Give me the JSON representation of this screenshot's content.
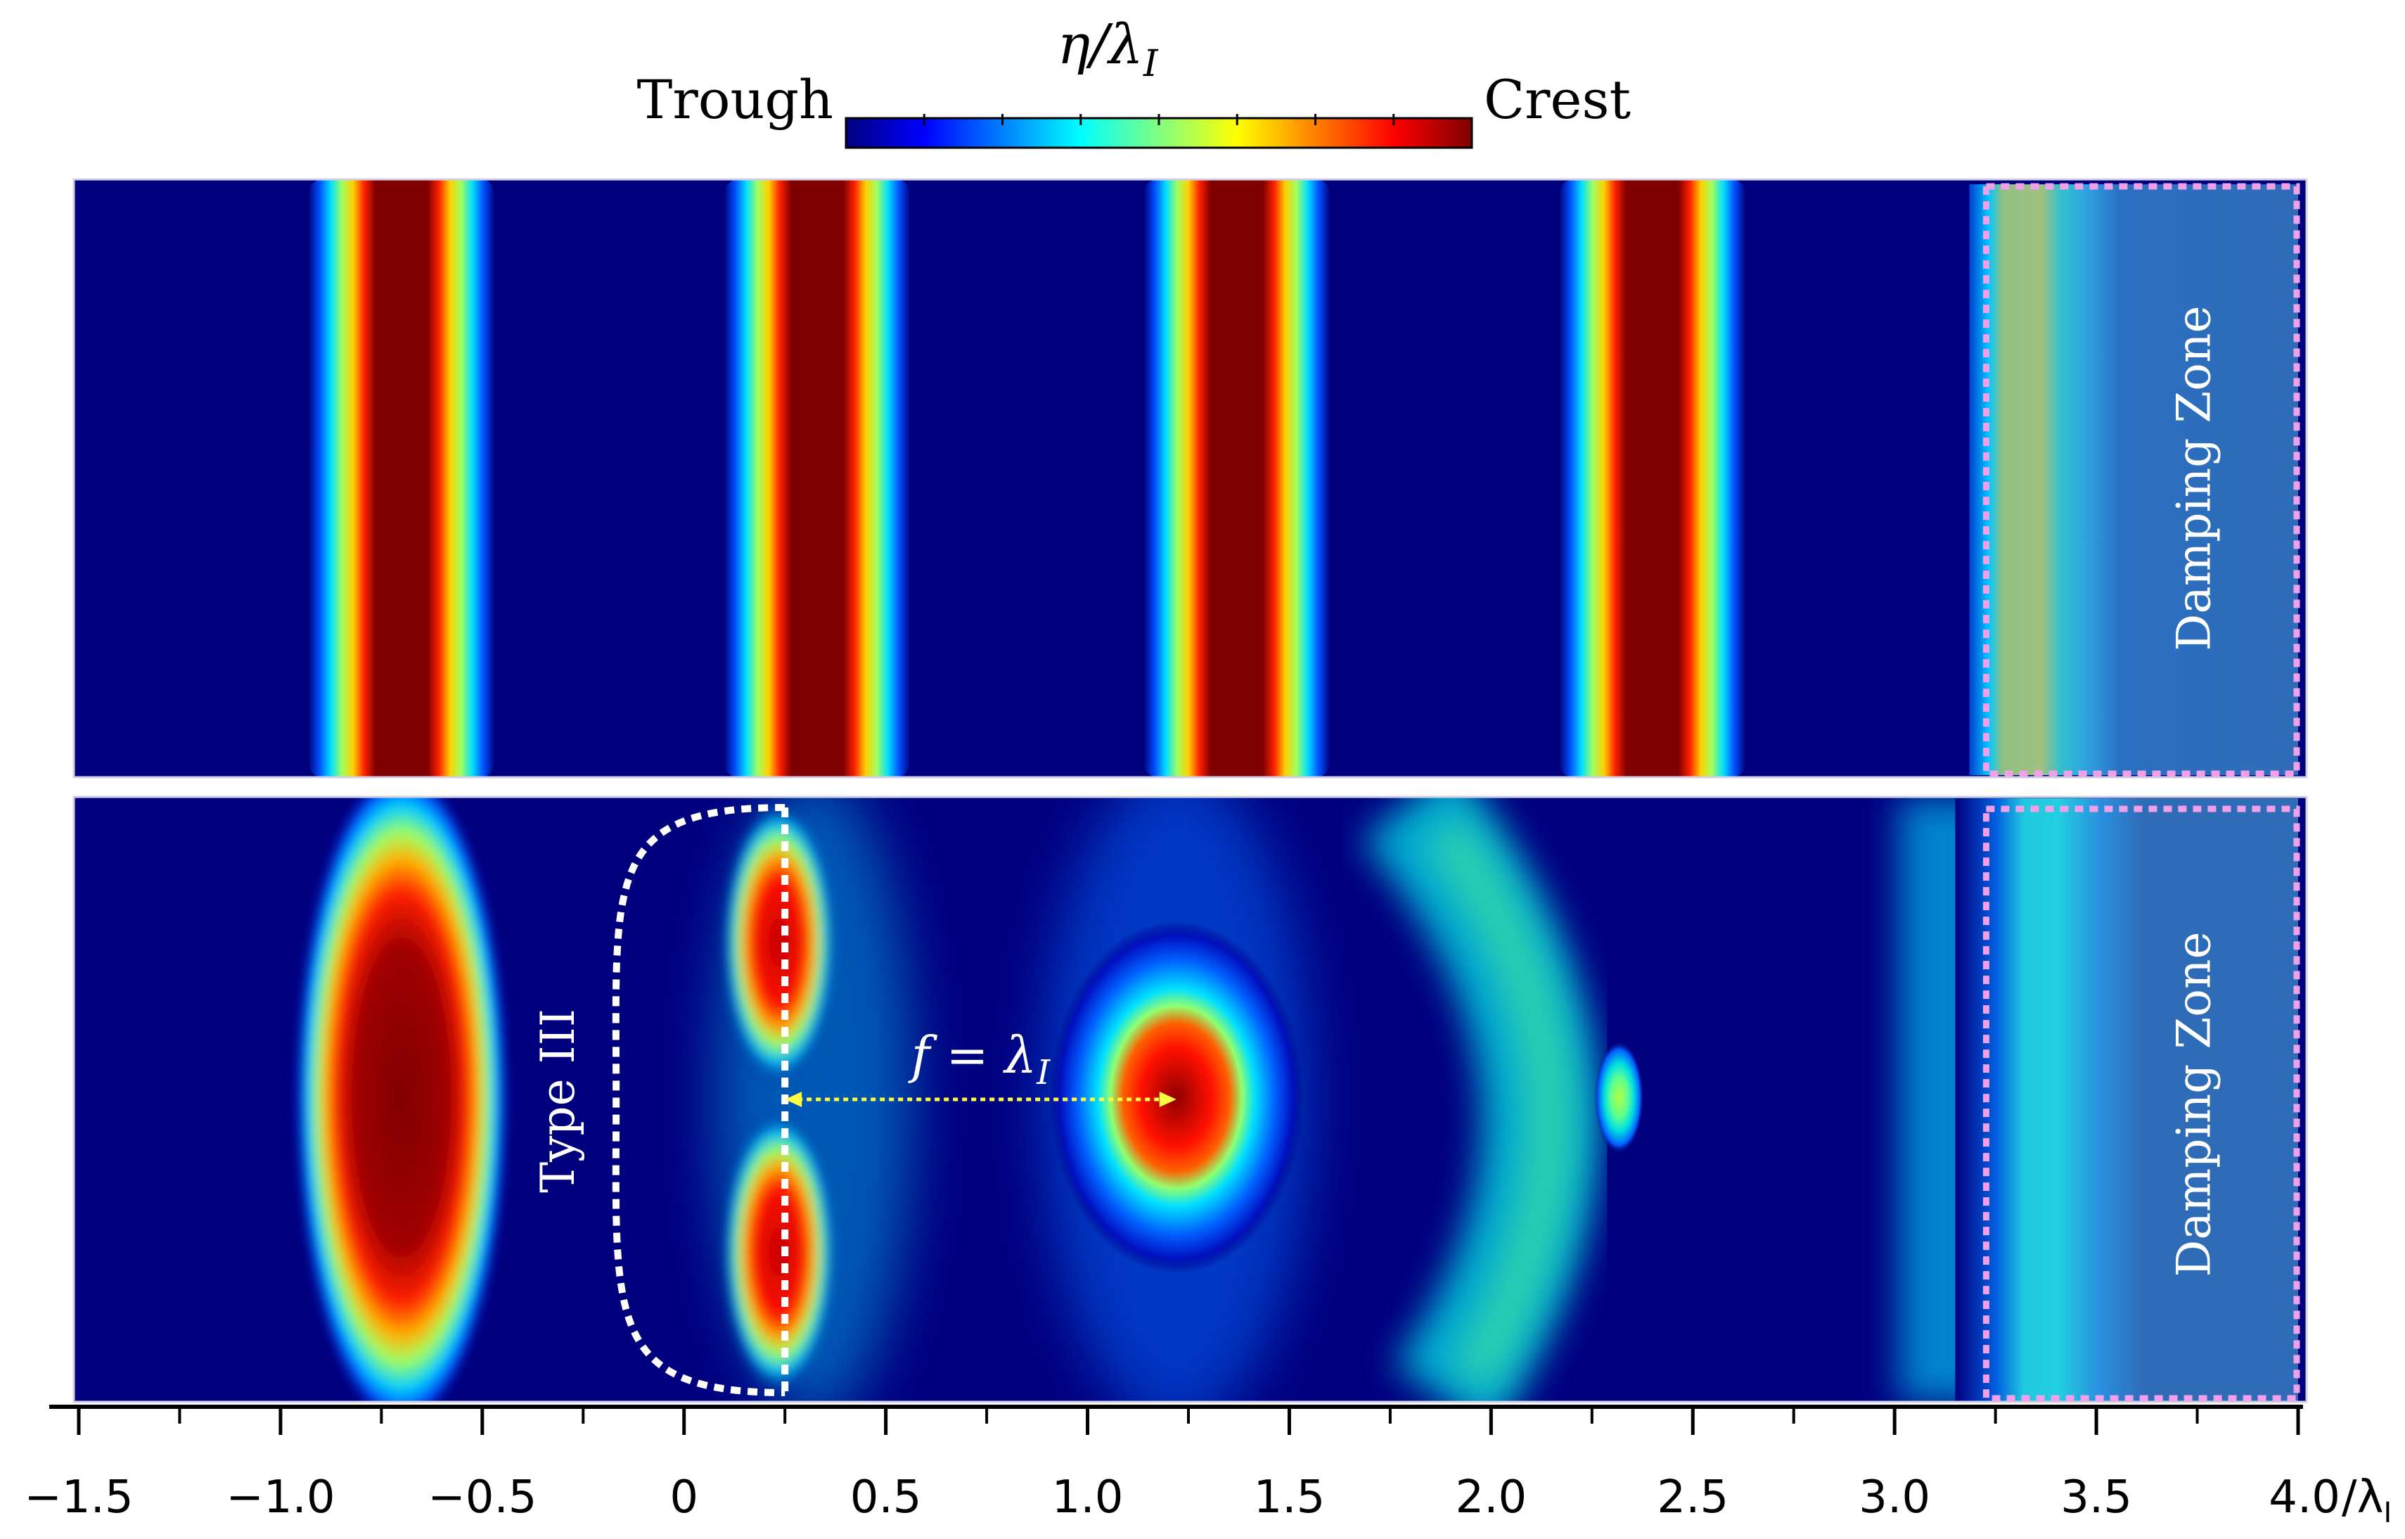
{
  "colorbar": {
    "title": "η/λ",
    "title_sub": "I",
    "left_label": "Trough",
    "right_label": "Crest",
    "colors": [
      "#00007f",
      "#0000ff",
      "#0080ff",
      "#00ffff",
      "#80ff80",
      "#ffff00",
      "#ff8000",
      "#ff0000",
      "#7f0000"
    ]
  },
  "chart_data": [
    {
      "type": "heatmap",
      "panel": "top",
      "title": "",
      "annotation": "Damping Zone",
      "x_domain": [
        -1.5,
        4.0
      ],
      "crests_x": [
        -0.7,
        0.33,
        1.37,
        2.4
      ],
      "crest_level": "Crest",
      "damping_zone_x": [
        3.22,
        4.0
      ]
    },
    {
      "type": "heatmap",
      "panel": "bottom",
      "title": "",
      "annotation": "Damping Zone",
      "x_domain": [
        -1.5,
        4.0
      ],
      "features": [
        {
          "x": -0.7,
          "shape": "lens",
          "level": "Crest"
        },
        {
          "x": 0.2,
          "shape": "split lobes",
          "level": "Crest"
        },
        {
          "x": 1.22,
          "shape": "focal spot",
          "level": "Crest"
        },
        {
          "x": 2.3,
          "shape": "curved band",
          "level": "mid"
        }
      ],
      "type_label": "Type III",
      "focus_label": "f = λ",
      "focus_label_sub": "I",
      "focus_arrow_x": [
        0.25,
        1.22
      ],
      "damping_zone_x": [
        3.22,
        4.0
      ]
    }
  ],
  "xaxis": {
    "min": -1.5,
    "max": 4.0,
    "ticks": [
      -1.5,
      -1.0,
      -0.5,
      0,
      0.5,
      1.0,
      1.5,
      2.0,
      2.5,
      3.0,
      3.5,
      4.0
    ],
    "tick_labels": [
      "−1.5",
      "−1.0",
      "−0.5",
      "0",
      "0.5",
      "1.0",
      "1.5",
      "2.0",
      "2.5",
      "3.0",
      "3.5",
      "4.0"
    ],
    "unit": "/λ",
    "unit_sub": "I"
  }
}
